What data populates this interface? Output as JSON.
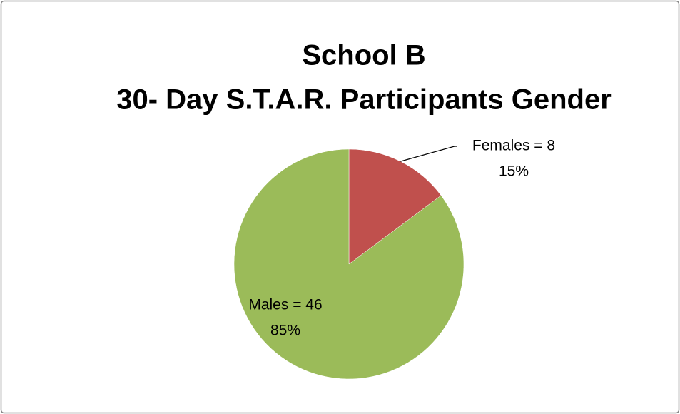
{
  "chart_data": {
    "type": "pie",
    "title": [
      "School B",
      "30- Day S.T.A.R. Participants Gender"
    ],
    "categories": [
      "Females",
      "Males"
    ],
    "values": [
      8,
      46
    ],
    "value_labels": [
      "Females = 8",
      "Males = 46"
    ],
    "percent_labels": [
      "15%",
      "85%"
    ],
    "colors": [
      "#c0504d",
      "#9bbb59"
    ]
  }
}
